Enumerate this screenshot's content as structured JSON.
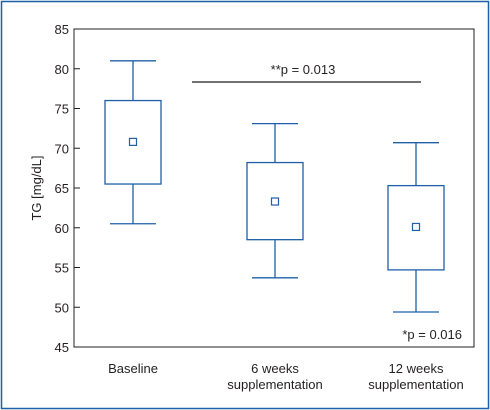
{
  "chart_data": {
    "type": "box",
    "ylabel": "TG [mg/dL]",
    "ylim": [
      45,
      85
    ],
    "yticks": [
      45,
      50,
      55,
      60,
      65,
      70,
      75,
      80,
      85
    ],
    "grid": false,
    "categories": [
      {
        "line1": "Baseline",
        "line2": ""
      },
      {
        "line1": "6 weeks",
        "line2": "supplementation"
      },
      {
        "line1": "12 weeks",
        "line2": "supplementation"
      }
    ],
    "boxes": [
      {
        "whisker_low": 60.5,
        "q1": 65.5,
        "mean": 70.8,
        "q3": 76.0,
        "whisker_high": 81.0
      },
      {
        "whisker_low": 53.7,
        "q1": 58.5,
        "mean": 63.3,
        "q3": 68.2,
        "whisker_high": 73.1
      },
      {
        "whisker_low": 49.4,
        "q1": 54.7,
        "mean": 60.1,
        "q3": 65.3,
        "whisker_high": 70.7
      }
    ],
    "annotations": {
      "top": "**p = 0.013",
      "bottom": "*p = 0.016"
    },
    "colors": {
      "frame": "#1f5fa8",
      "box": "#1f5fa8",
      "text": "#231f20"
    }
  }
}
